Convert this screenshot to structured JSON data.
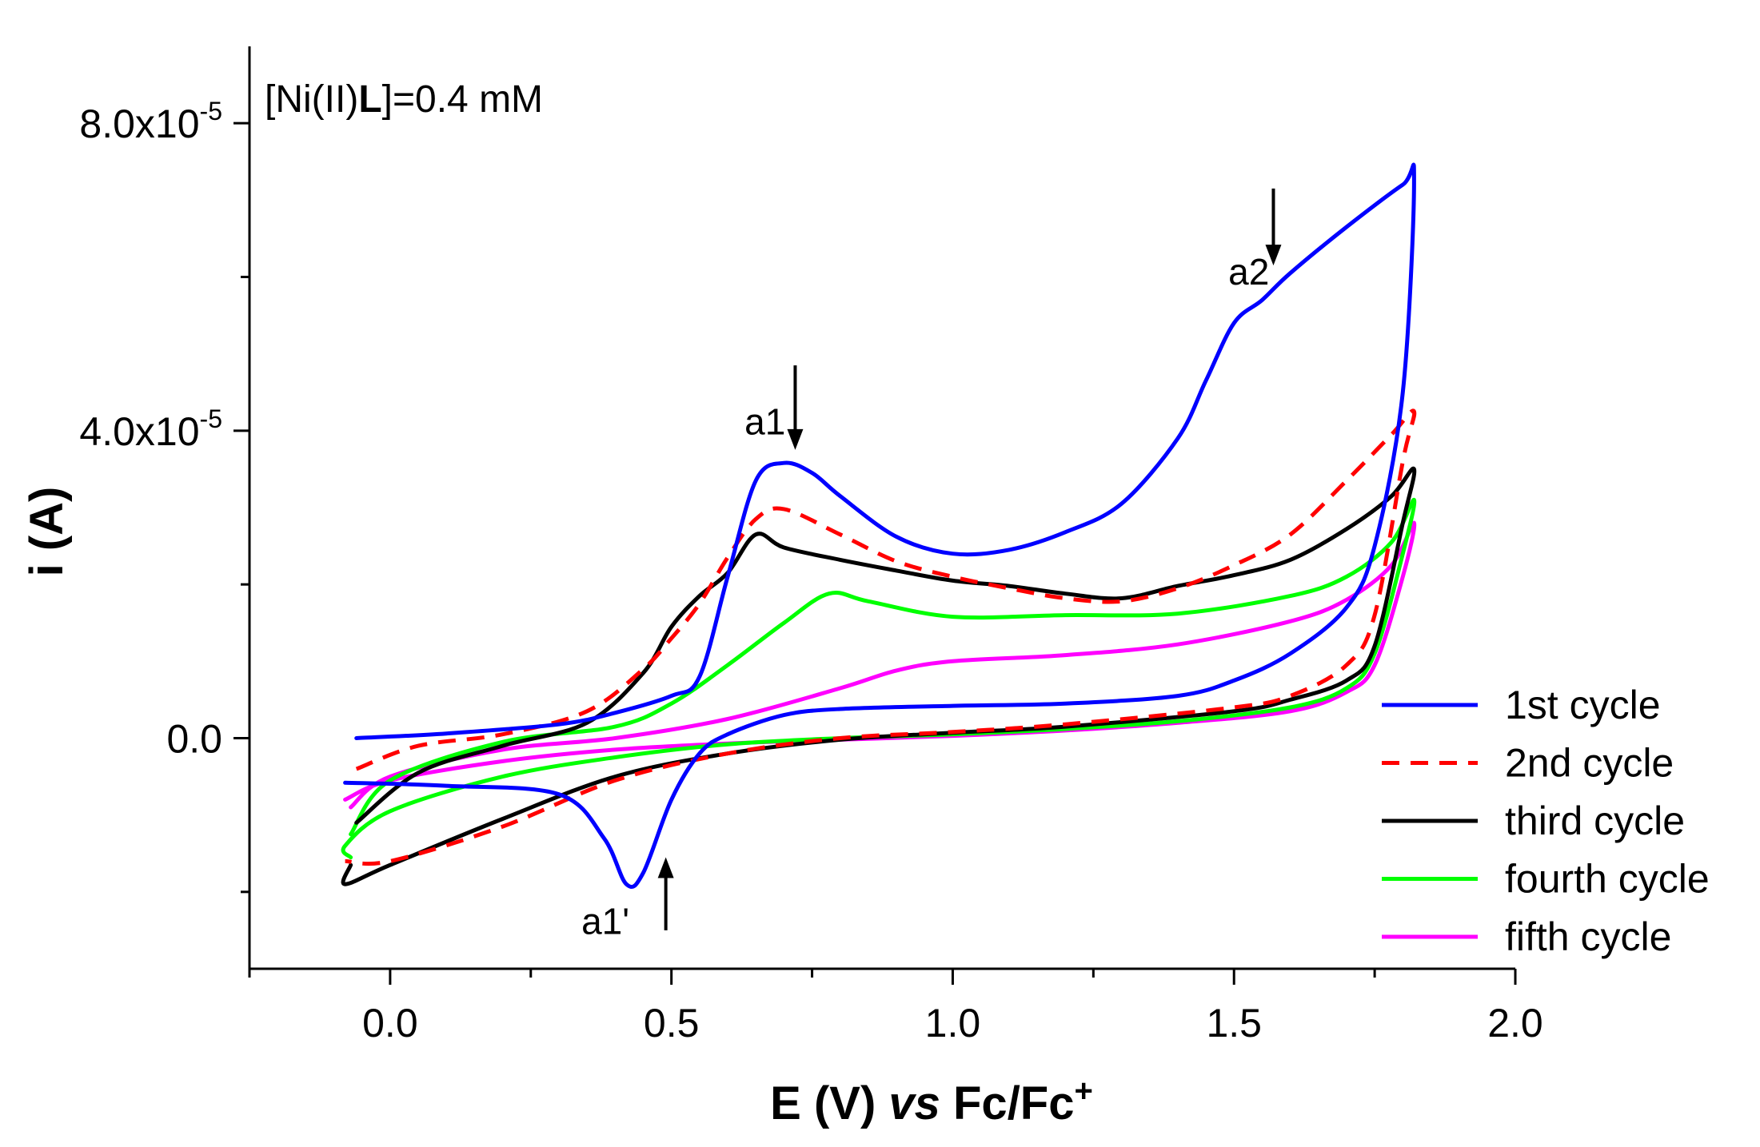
{
  "chart_data": {
    "type": "line",
    "title": "",
    "xlabel": {
      "prefix": "E (V) ",
      "italic": "vs",
      "suffix": " Fc/Fc",
      "sup": "+"
    },
    "ylabel": "i (A)",
    "xlim": [
      -0.25,
      2.0
    ],
    "ylim": [
      -3e-05,
      9e-05
    ],
    "x_ticks": [
      {
        "value": 0.0,
        "label": "0.0"
      },
      {
        "value": 0.5,
        "label": "0.5"
      },
      {
        "value": 1.0,
        "label": "1.0"
      },
      {
        "value": 1.5,
        "label": "1.5"
      },
      {
        "value": 2.0,
        "label": "2.0"
      }
    ],
    "x_minor_ticks": [
      -0.25,
      0.25,
      0.75,
      1.25,
      1.75
    ],
    "y_ticks": [
      {
        "value": 0.0,
        "mant": "0.0",
        "exp": ""
      },
      {
        "value": 4e-05,
        "mant": "4.0x10",
        "exp": "-5"
      },
      {
        "value": 8e-05,
        "mant": "8.0x10",
        "exp": "-5"
      }
    ],
    "y_minor_ticks": [
      -2e-05,
      2e-05,
      6e-05
    ],
    "concentration": {
      "open": "[Ni(II)",
      "bold": "L",
      "close": "]=0.4 mM"
    },
    "annotations": [
      {
        "label": "a1",
        "x": 0.63,
        "y": 3.95e-05,
        "arrow_x": 0.72,
        "arrow_from": 4.85e-05,
        "arrow_to": 3.75e-05,
        "dir": "down"
      },
      {
        "label": "a2",
        "x": 1.49,
        "y": 5.9e-05,
        "arrow_x": 1.57,
        "arrow_from": 7.15e-05,
        "arrow_to": 6.15e-05,
        "dir": "down"
      },
      {
        "label": "a1'",
        "x": 0.34,
        "y": -2.55e-05,
        "arrow_x": 0.49,
        "arrow_from": -2.5e-05,
        "arrow_to": -1.55e-05,
        "dir": "up"
      }
    ],
    "legend_position": "right",
    "series": [
      {
        "name": "1st cycle",
        "color": "#0000ff",
        "dashed": false,
        "x": [
          -0.06,
          0.1,
          0.3,
          0.4,
          0.5,
          0.55,
          0.6,
          0.65,
          0.7,
          0.75,
          0.8,
          0.9,
          1.0,
          1.1,
          1.2,
          1.3,
          1.4,
          1.45,
          1.5,
          1.55,
          1.6,
          1.7,
          1.8,
          1.82,
          1.8,
          1.75,
          1.7,
          1.6,
          1.5,
          1.4,
          1.2,
          1.0,
          0.8,
          0.7,
          0.6,
          0.55,
          0.5,
          0.45,
          0.42,
          0.38,
          0.3,
          0.1,
          -0.08
        ],
        "y": [
          0.0,
          6e-07,
          1.8e-06,
          3.3e-06,
          5.5e-06,
          8e-06,
          2.1e-05,
          3.35e-05,
          3.58e-05,
          3.45e-05,
          3.15e-05,
          2.62e-05,
          2.4e-05,
          2.45e-05,
          2.68e-05,
          3.05e-05,
          3.9e-05,
          4.65e-05,
          5.4e-05,
          5.7e-05,
          6.05e-05,
          6.65e-05,
          7.2e-05,
          7.25e-05,
          4.5e-05,
          2.5e-05,
          1.7e-05,
          1.1e-05,
          7.5e-06,
          5.5e-06,
          4.5e-06,
          4.2e-06,
          3.8e-06,
          3e-06,
          5e-07,
          -2e-06,
          -8e-06,
          -1.75e-05,
          -1.9e-05,
          -1.3e-05,
          -7.3e-06,
          -6.2e-06,
          -5.8e-06
        ]
      },
      {
        "name": "2nd cycle",
        "color": "#ff0000",
        "dashed": true,
        "x": [
          -0.06,
          0.05,
          0.2,
          0.35,
          0.45,
          0.5,
          0.55,
          0.6,
          0.65,
          0.7,
          0.8,
          0.9,
          1.0,
          1.1,
          1.2,
          1.3,
          1.4,
          1.5,
          1.6,
          1.7,
          1.78,
          1.82,
          1.8,
          1.75,
          1.7,
          1.6,
          1.5,
          1.2,
          1.0,
          0.8,
          0.6,
          0.4,
          0.2,
          0.0,
          -0.08
        ],
        "y": [
          -4e-06,
          -1e-06,
          5e-07,
          3.5e-06,
          9e-06,
          1.3e-05,
          1.75e-05,
          2.35e-05,
          2.85e-05,
          2.98e-05,
          2.65e-05,
          2.3e-05,
          2.1e-05,
          1.95e-05,
          1.82e-05,
          1.78e-05,
          1.95e-05,
          2.25e-05,
          2.65e-05,
          3.35e-05,
          3.95e-05,
          4.25e-05,
          3.6e-05,
          1.6e-05,
          9.5e-06,
          5.5e-06,
          4e-06,
          1.8e-06,
          8e-07,
          0.0,
          -2e-06,
          -5.5e-06,
          -1.15e-05,
          -1.6e-05,
          -1.6e-05
        ]
      },
      {
        "name": "third cycle",
        "color": "#000000",
        "dashed": false,
        "x": [
          -0.06,
          0.05,
          0.2,
          0.35,
          0.45,
          0.5,
          0.55,
          0.6,
          0.65,
          0.7,
          0.8,
          0.9,
          1.0,
          1.1,
          1.2,
          1.3,
          1.4,
          1.5,
          1.6,
          1.7,
          1.78,
          1.82,
          1.8,
          1.75,
          1.7,
          1.6,
          1.5,
          1.2,
          1.0,
          0.8,
          0.6,
          0.4,
          0.2,
          0.0,
          -0.08,
          -0.07
        ],
        "y": [
          -1.1e-05,
          -4.5e-06,
          -1e-06,
          2e-06,
          8.5e-06,
          1.45e-05,
          1.85e-05,
          2.15e-05,
          2.65e-05,
          2.48e-05,
          2.32e-05,
          2.18e-05,
          2.05e-05,
          1.98e-05,
          1.88e-05,
          1.82e-05,
          1.98e-05,
          2.12e-05,
          2.32e-05,
          2.72e-05,
          3.15e-05,
          3.5e-05,
          2.8e-05,
          1.2e-05,
          7.5e-06,
          5e-06,
          3.5e-06,
          1.5e-06,
          7e-07,
          -2e-07,
          -2e-06,
          -5e-06,
          -1.05e-05,
          -1.65e-05,
          -1.9e-05,
          -1.65e-05
        ]
      },
      {
        "name": "fourth cycle",
        "color": "#00ff00",
        "dashed": false,
        "x": [
          -0.07,
          0.0,
          0.2,
          0.4,
          0.5,
          0.6,
          0.7,
          0.78,
          0.85,
          1.0,
          1.2,
          1.4,
          1.6,
          1.7,
          1.78,
          1.82,
          1.8,
          1.75,
          1.7,
          1.6,
          1.4,
          1.2,
          1.0,
          0.8,
          0.6,
          0.4,
          0.2,
          0.0,
          -0.08,
          -0.07
        ],
        "y": [
          -1.25e-05,
          -5.5e-06,
          -5e-07,
          1.5e-06,
          4.5e-06,
          9.5e-06,
          1.5e-05,
          1.88e-05,
          1.78e-05,
          1.58e-05,
          1.6e-05,
          1.62e-05,
          1.85e-05,
          2.1e-05,
          2.55e-05,
          3.1e-05,
          2.4e-05,
          1.1e-05,
          6.5e-06,
          4e-06,
          2.2e-06,
          1.2e-06,
          5e-07,
          0.0,
          -8e-07,
          -2.5e-06,
          -5e-06,
          -9.5e-06,
          -1.4e-05,
          -1.55e-05
        ]
      },
      {
        "name": "fifth cycle",
        "color": "#ff00ff",
        "dashed": false,
        "x": [
          -0.07,
          0.0,
          0.2,
          0.4,
          0.6,
          0.8,
          0.9,
          1.0,
          1.2,
          1.4,
          1.6,
          1.7,
          1.78,
          1.82,
          1.8,
          1.75,
          1.7,
          1.6,
          1.4,
          1.2,
          1.0,
          0.8,
          0.6,
          0.4,
          0.2,
          0.0,
          -0.08
        ],
        "y": [
          -9e-06,
          -5e-06,
          -1.5e-06,
          0.0,
          2.5e-06,
          6.5e-06,
          8.8e-06,
          1e-05,
          1.08e-05,
          1.22e-05,
          1.52e-05,
          1.8e-05,
          2.25e-05,
          2.8e-05,
          2.1e-05,
          9.5e-06,
          6e-06,
          3.5e-06,
          2e-06,
          1e-06,
          3e-07,
          -2e-07,
          -7e-07,
          -1.5e-06,
          -3e-06,
          -5.5e-06,
          -8e-06
        ]
      }
    ]
  }
}
